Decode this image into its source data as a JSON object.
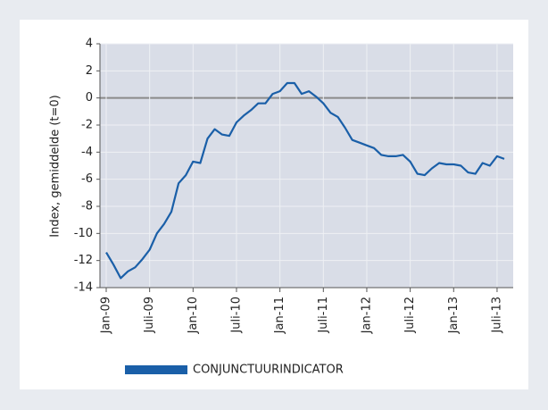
{
  "chart_data": {
    "type": "line",
    "y_label": "Index, gemiddelde (t=0)",
    "categories": [
      "Jan-09",
      null,
      null,
      null,
      null,
      null,
      "Juli-09",
      null,
      null,
      null,
      null,
      null,
      "Jan-10",
      null,
      null,
      null,
      null,
      null,
      "Juli-10",
      null,
      null,
      null,
      null,
      null,
      "Jan-11",
      null,
      null,
      null,
      null,
      null,
      "Juli-11",
      null,
      null,
      null,
      null,
      null,
      "Jan-12",
      null,
      null,
      null,
      null,
      null,
      "Juli-12",
      null,
      null,
      null,
      null,
      null,
      "Jan-13",
      null,
      null,
      null,
      null,
      null,
      "Juli-13",
      null
    ],
    "series": [
      {
        "name": "CONJUNCTUURINDICATOR",
        "color": "#1a5fa8",
        "values": [
          -11.4,
          -12.3,
          -13.3,
          -12.8,
          -12.5,
          -11.9,
          -11.2,
          -10.0,
          -9.3,
          -8.4,
          -6.3,
          -5.7,
          -4.7,
          -4.8,
          -3.0,
          -2.3,
          -2.7,
          -2.8,
          -1.8,
          -1.3,
          -0.9,
          -0.4,
          -0.4,
          0.3,
          0.5,
          1.1,
          1.1,
          0.3,
          0.5,
          0.1,
          -0.4,
          -1.1,
          -1.4,
          -2.2,
          -3.1,
          -3.3,
          -3.5,
          -3.7,
          -4.2,
          -4.3,
          -4.3,
          -4.2,
          -4.7,
          -5.6,
          -5.7,
          -5.2,
          -4.8,
          -4.9,
          -4.9,
          -5.0,
          -5.5,
          -5.6,
          -4.8,
          -5.0,
          -4.3,
          -4.5
        ]
      }
    ],
    "ylim": [
      -14,
      4
    ],
    "yticks": [
      -14,
      -12,
      -10,
      -8,
      -6,
      -4,
      -2,
      0,
      2,
      4
    ],
    "grid": true
  }
}
